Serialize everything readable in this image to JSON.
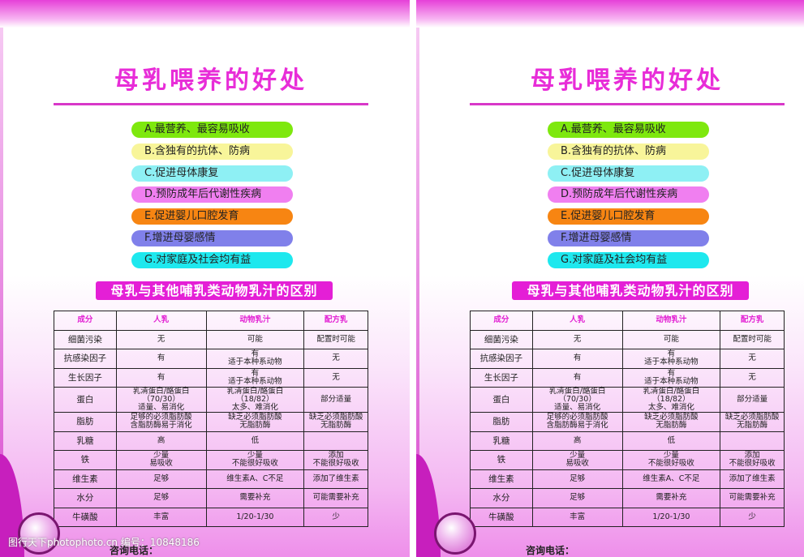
{
  "title": "母乳喂养的好处",
  "benefits": [
    {
      "text": "A.最营养、最容易吸收",
      "color": "#7ee80e"
    },
    {
      "text": "B.含独有的抗体、防病",
      "color": "#f8f59a"
    },
    {
      "text": "C.促进母体康复",
      "color": "#8ef0f4"
    },
    {
      "text": "D.预防成年后代谢性疾病",
      "color": "#f07ff0"
    },
    {
      "text": "E.促进婴儿口腔发育",
      "color": "#f78512"
    },
    {
      "text": "F.增进母婴感情",
      "color": "#8080ea"
    },
    {
      "text": "G.对家庭及社会均有益",
      "color": "#1ee8ee"
    }
  ],
  "subtitle": "母乳与其他哺乳类动物乳汁的区别",
  "table": {
    "headers": [
      "成分",
      "人乳",
      "动物乳汁",
      "配方乳"
    ],
    "rows": [
      [
        "细菌污染",
        "无",
        "可能",
        "配置时可能"
      ],
      [
        "抗感染因子",
        "有",
        "有\n适于本种系动物",
        "无"
      ],
      [
        "生长因子",
        "有",
        "有\n适于本种系动物",
        "无"
      ],
      [
        "蛋白",
        "乳清蛋白/酪蛋白（70/30）\n适量、易消化",
        "乳清蛋白/酪蛋白（18/82）\n太多、难消化",
        "部分适量"
      ],
      [
        "脂肪",
        "足够的必须脂肪酸\n含脂肪酶易于消化",
        "缺乏必须脂肪酸\n无脂肪酶",
        "缺乏必须脂肪酸\n无脂肪酶"
      ],
      [
        "乳糖",
        "高",
        "低",
        ""
      ],
      [
        "铁",
        "少量\n易吸收",
        "少量\n不能很好吸收",
        "添加\n不能很好吸收"
      ],
      [
        "维生素",
        "足够",
        "维生素A、C不足",
        "添加了维生素"
      ],
      [
        "水分",
        "足够",
        "需要补充",
        "可能需要补充"
      ],
      [
        "牛磺酸",
        "丰富",
        "1/20-1/30",
        "少"
      ]
    ]
  },
  "footer": {
    "watermark": "图行天下photophoto.cn  编号：10848186",
    "phone_label": "咨询电话："
  }
}
